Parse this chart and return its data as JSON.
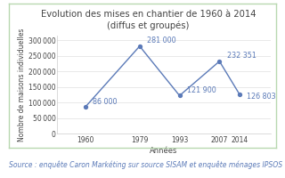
{
  "title_line1": "Evolution des mises en chantier de 1960 à 2014",
  "title_line2": "(diffus et groupés)",
  "xlabel": "Années",
  "ylabel": "Nombre de maisons individuelles",
  "years": [
    1960,
    1979,
    1993,
    2007,
    2014
  ],
  "values": [
    86000,
    281000,
    121900,
    232351,
    126803
  ],
  "labels": [
    "86 000",
    "281 000",
    "121 900",
    "232 351",
    "126 803"
  ],
  "label_offsets_x": [
    6,
    6,
    6,
    6,
    6
  ],
  "label_offsets_y": [
    0,
    0,
    0,
    0,
    -14000
  ],
  "line_color": "#5b7ab8",
  "marker_color": "#5b7ab8",
  "yticks": [
    0,
    50000,
    100000,
    150000,
    200000,
    250000,
    300000
  ],
  "ylim": [
    0,
    315000
  ],
  "xlim": [
    1950,
    2025
  ],
  "source_text": "Source : enquête Caron Markéting sur source SISAM et enquête ménages IPSOS",
  "bg_color": "#ffffff",
  "border_color": "#b8d8b0",
  "title_fontsize": 7.2,
  "label_fontsize": 5.8,
  "tick_fontsize": 5.5,
  "ylabel_fontsize": 5.5,
  "xlabel_fontsize": 6.0,
  "source_fontsize": 5.5,
  "text_color": "#444444",
  "source_color": "#5b7ab8"
}
